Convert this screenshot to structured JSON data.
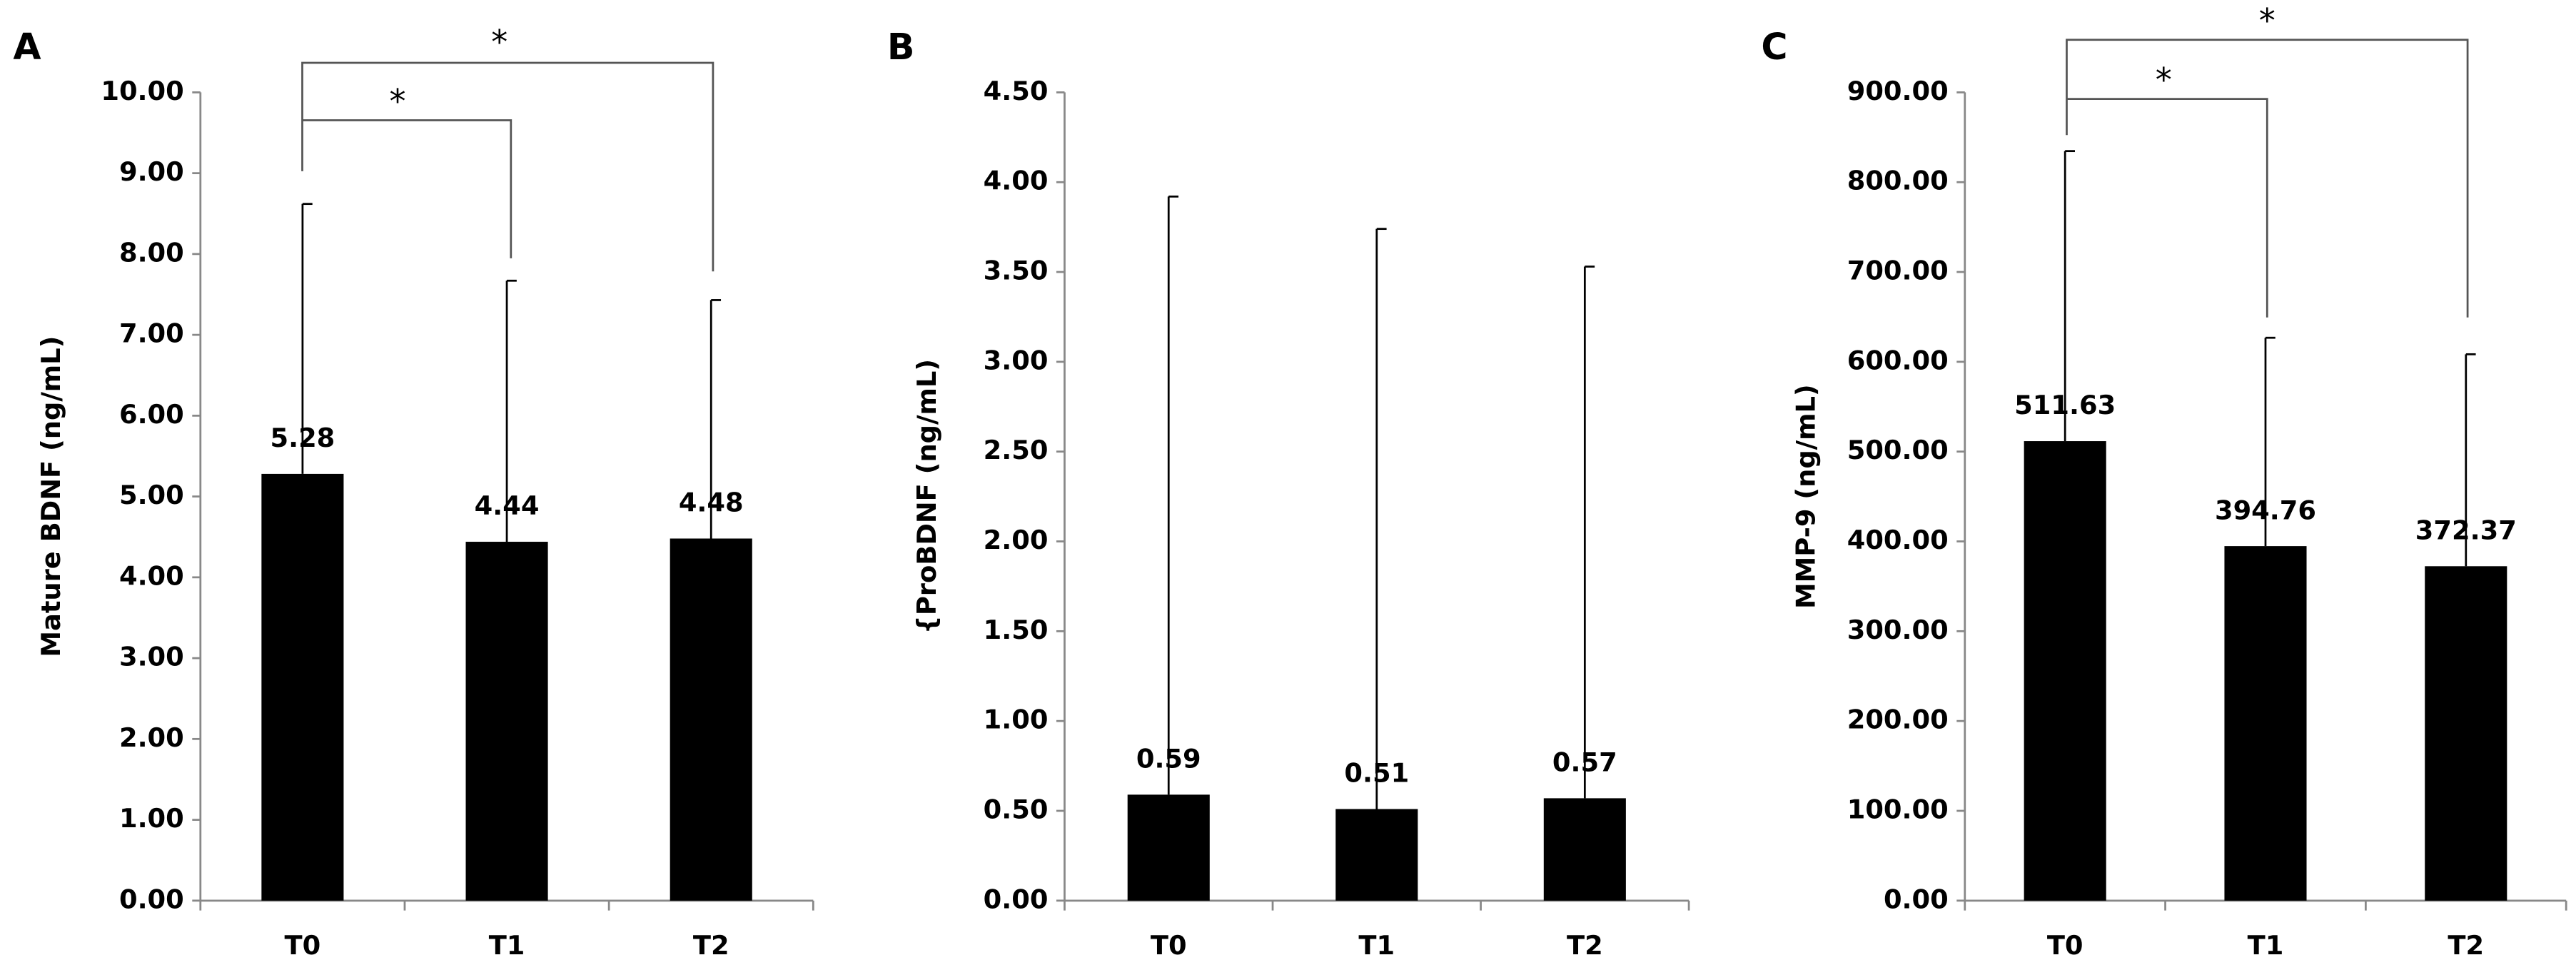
{
  "chart_data": [
    {
      "type": "bar",
      "panel_label": "A",
      "ylabel": "Mature BDNF (ng/mL)",
      "color": "#000000",
      "categories": [
        "T0",
        "T1",
        "T2"
      ],
      "values": [
        5.28,
        4.44,
        4.48
      ],
      "errors": [
        3.34,
        3.23,
        2.95
      ],
      "ylim": [
        0,
        10
      ],
      "yticks": [
        {
          "value": 0,
          "label": "0.00"
        },
        {
          "value": 1,
          "label": "1.00"
        },
        {
          "value": 2,
          "label": "2.00"
        },
        {
          "value": 3,
          "label": "3.00"
        },
        {
          "value": 4,
          "label": "4.00"
        },
        {
          "value": 5,
          "label": "5.00"
        },
        {
          "value": 6,
          "label": "6.00"
        },
        {
          "value": 7,
          "label": "7.00"
        },
        {
          "value": 8,
          "label": "8.00"
        },
        {
          "value": 9,
          "label": "9.00"
        },
        {
          "value": 10,
          "label": "10.00"
        }
      ],
      "annotations": [
        "*",
        "*"
      ]
    },
    {
      "type": "bar",
      "panel_label": "B",
      "ylabel": "{ProBDNF (ng/mL)",
      "color": "#000000",
      "categories": [
        "T0",
        "T1",
        "T2"
      ],
      "values": [
        0.59,
        0.51,
        0.57
      ],
      "errors": [
        3.33,
        3.23,
        2.96
      ],
      "ylim": [
        0,
        4.5
      ],
      "yticks": [
        {
          "value": 0,
          "label": "0.00"
        },
        {
          "value": 0.5,
          "label": "0.50"
        },
        {
          "value": 1,
          "label": "1.00"
        },
        {
          "value": 1.5,
          "label": "1.50"
        },
        {
          "value": 2,
          "label": "2.00"
        },
        {
          "value": 2.5,
          "label": "2.50"
        },
        {
          "value": 3,
          "label": "3.00"
        },
        {
          "value": 3.5,
          "label": "3.50"
        },
        {
          "value": 4,
          "label": "4.00"
        },
        {
          "value": 4.5,
          "label": "4.50"
        }
      ]
    },
    {
      "type": "bar",
      "panel_label": "C",
      "ylabel": "MMP-9 (ng/mL)",
      "color": "#000000",
      "categories": [
        "T0",
        "T1",
        "T2"
      ],
      "values": [
        511.63,
        394.76,
        372.37
      ],
      "errors": [
        323,
        232,
        236
      ],
      "ylim": [
        0,
        900
      ],
      "yticks": [
        {
          "value": 0,
          "label": "0.00"
        },
        {
          "value": 100,
          "label": "100.00"
        },
        {
          "value": 200,
          "label": "200.00"
        },
        {
          "value": 300,
          "label": "300.00"
        },
        {
          "value": 400,
          "label": "400.00"
        },
        {
          "value": 500,
          "label": "500.00"
        },
        {
          "value": 600,
          "label": "600.00"
        },
        {
          "value": 700,
          "label": "700.00"
        },
        {
          "value": 800,
          "label": "800.00"
        },
        {
          "value": 900,
          "label": "900.00"
        }
      ],
      "annotations": [
        "*",
        "*"
      ]
    }
  ]
}
